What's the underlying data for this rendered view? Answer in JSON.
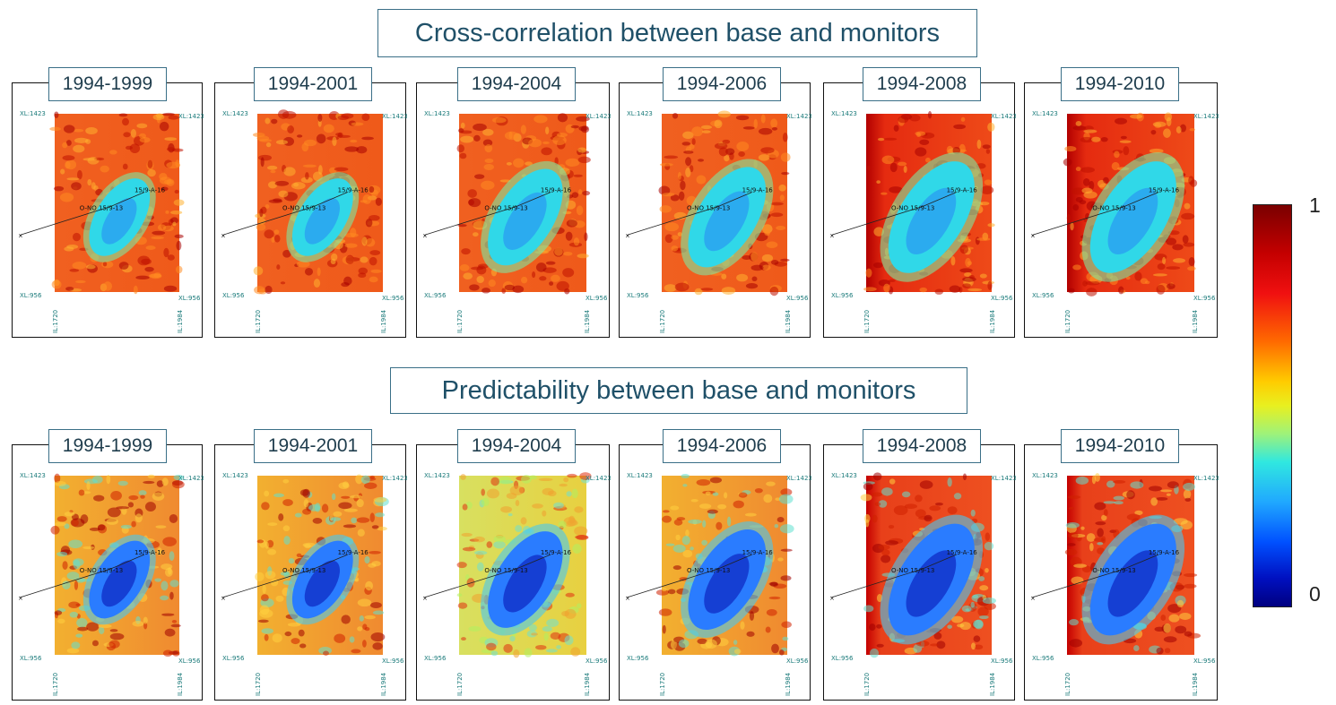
{
  "sections": [
    {
      "title": "Cross-correlation between base and monitors",
      "panels": [
        {
          "label": "1994-1999",
          "anomaly": 0.55
        },
        {
          "label": "1994-2001",
          "anomaly": 0.55
        },
        {
          "label": "1994-2004",
          "anomaly": 0.8
        },
        {
          "label": "1994-2006",
          "anomaly": 0.85
        },
        {
          "label": "1994-2008",
          "anomaly": 1.0
        },
        {
          "label": "1994-2010",
          "anomaly": 1.0
        }
      ]
    },
    {
      "title": "Predictability between base and monitors",
      "panels": [
        {
          "label": "1994-1999",
          "anomaly": 0.55
        },
        {
          "label": "1994-2001",
          "anomaly": 0.55
        },
        {
          "label": "1994-2004",
          "anomaly": 0.8
        },
        {
          "label": "1994-2006",
          "anomaly": 0.85
        },
        {
          "label": "1994-2008",
          "anomaly": 1.0
        },
        {
          "label": "1994-2010",
          "anomaly": 1.0
        }
      ]
    }
  ],
  "map_annotations": {
    "xl_top": "XL:1423",
    "xl_bottom": "XL:956",
    "il_left": "IL:1720",
    "il_right": "IL:1984",
    "well_a": "15/9-A-16",
    "well_b": "O-NO 15/9-13"
  },
  "colorbar": {
    "max_label": "1",
    "min_label": "0",
    "colors": [
      "#7a0000",
      "#e01010",
      "#ff8a00",
      "#e8f020",
      "#30e8e0",
      "#0050ff",
      "#000080"
    ]
  }
}
